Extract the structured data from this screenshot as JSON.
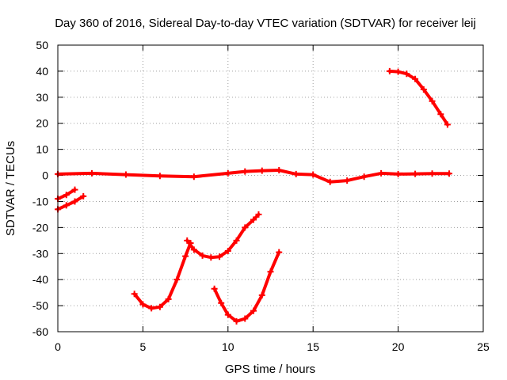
{
  "chart_data": {
    "type": "scatter",
    "title": "Day 360 of 2016, Sidereal Day-to-day VTEC variation (SDTVAR) for receiver leij",
    "xlabel": "GPS time / hours",
    "ylabel": "SDTVAR / TECUs",
    "xlim": [
      0,
      25
    ],
    "ylim": [
      -60,
      50
    ],
    "xticks": [
      0,
      5,
      10,
      15,
      20,
      25
    ],
    "yticks": [
      -60,
      -50,
      -40,
      -30,
      -20,
      -10,
      0,
      10,
      20,
      30,
      40,
      50
    ],
    "grid": true,
    "marker_color": "#ff0000",
    "series": [
      {
        "values": [
          [
            0.0,
            0.5
          ],
          [
            2,
            0.8
          ],
          [
            4,
            0.3
          ],
          [
            6,
            -0.2
          ],
          [
            8,
            -0.5
          ],
          [
            10,
            0.8
          ],
          [
            11,
            1.5
          ],
          [
            12,
            1.8
          ],
          [
            13,
            2.0
          ],
          [
            14,
            0.5
          ],
          [
            15,
            0.3
          ],
          [
            16,
            -2.5
          ],
          [
            17,
            -2.0
          ],
          [
            18,
            -0.5
          ],
          [
            19,
            0.8
          ],
          [
            20,
            0.5
          ],
          [
            21,
            0.6
          ],
          [
            22,
            0.7
          ],
          [
            23,
            0.7
          ]
        ]
      },
      {
        "values": [
          [
            0.0,
            -9.0
          ],
          [
            0.5,
            -7.5
          ],
          [
            1.0,
            -5.5
          ]
        ]
      },
      {
        "values": [
          [
            0.0,
            -13
          ],
          [
            0.5,
            -11.5
          ],
          [
            1.0,
            -10
          ],
          [
            1.5,
            -8
          ]
        ]
      },
      {
        "values": [
          [
            4.5,
            -45.5
          ],
          [
            5.0,
            -49.5
          ],
          [
            5.5,
            -51
          ],
          [
            6.0,
            -50.5
          ],
          [
            6.5,
            -47.5
          ],
          [
            7.0,
            -40
          ],
          [
            7.5,
            -31
          ],
          [
            7.8,
            -26
          ]
        ]
      },
      {
        "values": [
          [
            7.6,
            -25
          ],
          [
            8.0,
            -28.5
          ],
          [
            8.5,
            -30.8
          ],
          [
            9.0,
            -31.5
          ],
          [
            9.5,
            -31.2
          ],
          [
            10.0,
            -29
          ],
          [
            10.5,
            -25
          ],
          [
            11.0,
            -20
          ],
          [
            11.5,
            -17
          ],
          [
            11.8,
            -15
          ]
        ]
      },
      {
        "values": [
          [
            9.2,
            -43.5
          ],
          [
            9.6,
            -49
          ],
          [
            10.0,
            -53.5
          ],
          [
            10.5,
            -56
          ],
          [
            11.0,
            -55
          ],
          [
            11.5,
            -52
          ],
          [
            12.0,
            -46
          ],
          [
            12.5,
            -37
          ],
          [
            13.0,
            -29.5
          ]
        ]
      },
      {
        "values": [
          [
            19.5,
            40
          ],
          [
            20.0,
            39.8
          ],
          [
            20.5,
            39
          ],
          [
            21.0,
            37
          ],
          [
            21.5,
            33
          ],
          [
            22.0,
            28.5
          ],
          [
            22.5,
            23.5
          ],
          [
            22.9,
            19.5
          ]
        ]
      }
    ]
  }
}
